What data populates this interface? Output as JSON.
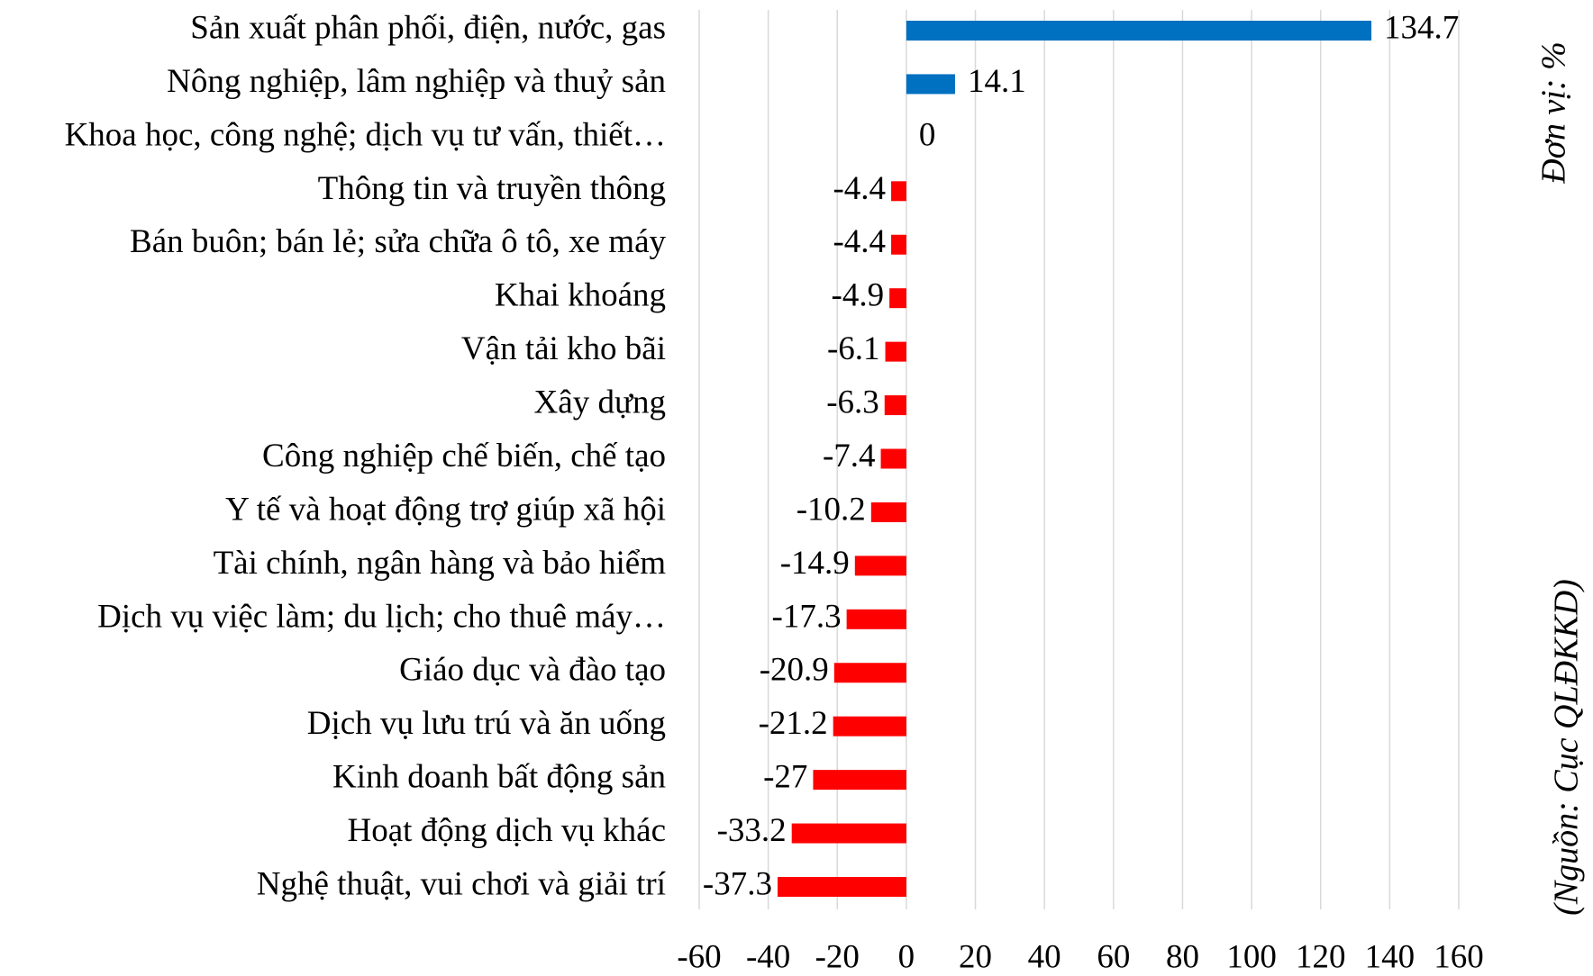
{
  "chart_data": {
    "type": "bar",
    "orientation": "horizontal",
    "categories": [
      "Sản xuất phân phối, điện, nước, gas",
      "Nông nghiệp, lâm nghiệp và thuỷ sản",
      "Khoa học, công nghệ; dịch vụ tư vấn, thiết…",
      "Thông tin và truyền thông",
      "Bán buôn; bán lẻ; sửa chữa ô tô, xe máy",
      "Khai khoáng",
      "Vận tải kho bãi",
      "Xây dựng",
      "Công nghiệp chế biến, chế tạo",
      "Y tế và hoạt động trợ giúp xã hội",
      "Tài chính, ngân hàng và bảo hiểm",
      "Dịch vụ việc làm; du lịch; cho thuê máy…",
      "Giáo dục và đào tạo",
      "Dịch vụ lưu trú và ăn uống",
      "Kinh doanh bất động sản",
      "Hoạt động dịch vụ khác",
      "Nghệ thuật, vui chơi và giải trí"
    ],
    "values": [
      134.7,
      14.1,
      0,
      -4.4,
      -4.4,
      -4.9,
      -6.1,
      -6.3,
      -7.4,
      -10.2,
      -14.9,
      -17.3,
      -20.9,
      -21.2,
      -27,
      -33.2,
      -37.3
    ],
    "color": "#0070c0",
    "negative_color": "#ff0000",
    "xlim": [
      -60,
      160
    ],
    "xticks": [
      -60,
      -40,
      -20,
      0,
      20,
      40,
      60,
      80,
      100,
      120,
      140,
      160
    ],
    "grid": true,
    "unit_note": "Đơn vị: %",
    "source": "(Nguồn: Cục QLĐKKD)"
  }
}
